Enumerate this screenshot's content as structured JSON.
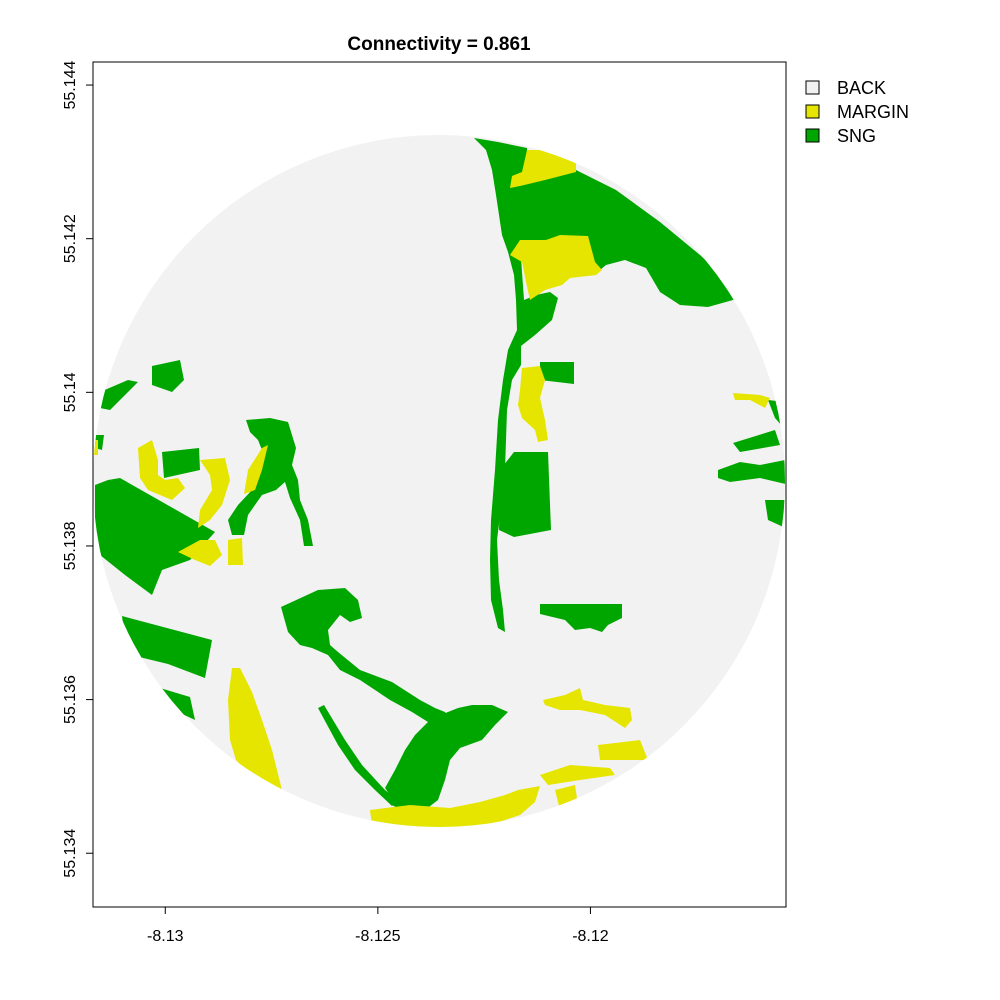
{
  "title": "Connectivity = 0.861",
  "map": {
    "x_ticks": [
      {
        "value": -8.13,
        "label": "-8.13"
      },
      {
        "value": -8.125,
        "label": "-8.125"
      },
      {
        "value": -8.12,
        "label": "-8.12"
      }
    ],
    "y_ticks": [
      {
        "value": 55.144,
        "label": "55.144"
      },
      {
        "value": 55.142,
        "label": "55.142"
      },
      {
        "value": 55.14,
        "label": "55.14"
      },
      {
        "value": 55.138,
        "label": "55.138"
      },
      {
        "value": 55.136,
        "label": "55.136"
      },
      {
        "value": 55.134,
        "label": "55.134"
      }
    ],
    "xlim": [
      -8.1317,
      -8.1154
    ],
    "ylim": [
      55.1333,
      55.1443
    ],
    "buffer_center": [
      -8.12435,
      55.1386
    ],
    "classes": [
      {
        "name": "BACK",
        "color": "#f2f2f2"
      },
      {
        "name": "MARGIN",
        "color": "#e5e500"
      },
      {
        "name": "SNG",
        "color": "#00a600"
      }
    ]
  },
  "legend": {
    "items": [
      {
        "label": "BACK",
        "color": "#f2f2f2"
      },
      {
        "label": "MARGIN",
        "color": "#e5e500"
      },
      {
        "label": "SNG",
        "color": "#00a600"
      }
    ]
  }
}
